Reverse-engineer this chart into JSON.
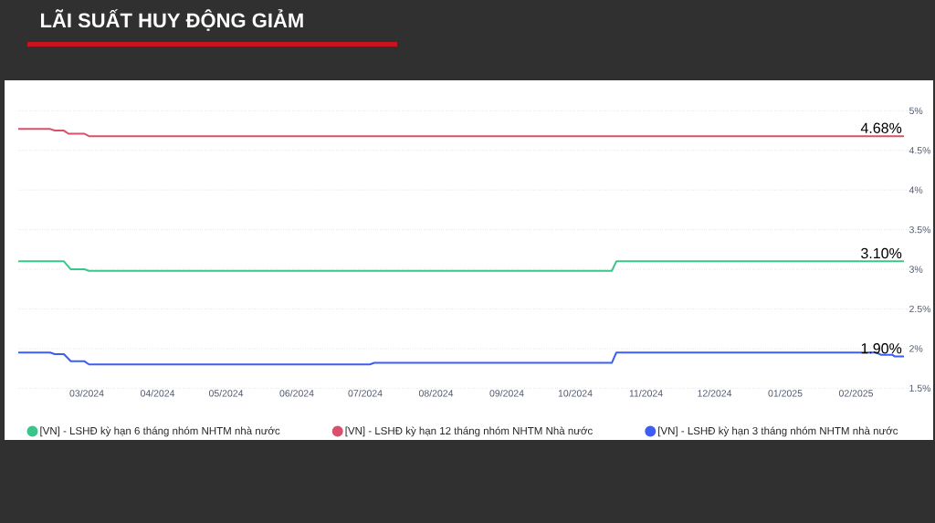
{
  "chart_data": {
    "type": "line",
    "title": "LÃI SUẤT HUY ĐỘNG GIẢM",
    "series": [
      {
        "name": "[VN] - LSHĐ kỳ hạn 6 tháng nhóm NHTM nhà nước",
        "color": "#3cc58a",
        "x": [
          "2024-01-31",
          "2024-02-20",
          "2024-02-23",
          "2024-02-29",
          "2024-03-02",
          "2024-10-17",
          "2024-10-19",
          "2025-02-22"
        ],
        "values": [
          3.1,
          3.1,
          3.0,
          3.0,
          2.98,
          2.98,
          3.1,
          3.1
        ]
      },
      {
        "name": "[VN] - LSHĐ kỳ hạn 12 tháng nhóm NHTM Nhà nước",
        "color": "#d9506a",
        "x": [
          "2024-01-31",
          "2024-02-14",
          "2024-02-16",
          "2024-02-20",
          "2024-02-22",
          "2024-02-29",
          "2024-03-02",
          "2025-02-22"
        ],
        "values": [
          4.77,
          4.77,
          4.75,
          4.75,
          4.71,
          4.71,
          4.68,
          4.68
        ]
      },
      {
        "name": "[VN] - LSHĐ kỳ hạn 3 tháng nhóm NHTM nhà nước",
        "color": "#3d5df5",
        "x": [
          "2024-01-31",
          "2024-02-14",
          "2024-02-16",
          "2024-02-20",
          "2024-02-23",
          "2024-02-29",
          "2024-03-02",
          "2024-07-03",
          "2024-07-05",
          "2024-10-17",
          "2024-10-19",
          "2025-02-10",
          "2025-02-12",
          "2025-02-17",
          "2025-02-18",
          "2025-02-22"
        ],
        "values": [
          1.95,
          1.95,
          1.93,
          1.93,
          1.84,
          1.84,
          1.8,
          1.8,
          1.82,
          1.82,
          1.95,
          1.95,
          1.92,
          1.92,
          1.9,
          1.9
        ]
      }
    ],
    "xlim": [
      "2024-01-31",
      "2025-02-24"
    ],
    "xticks": [
      {
        "value": "2024-03-01",
        "label": "03/2024"
      },
      {
        "value": "2024-04-01",
        "label": "04/2024"
      },
      {
        "value": "2024-05-01",
        "label": "05/2024"
      },
      {
        "value": "2024-06-01",
        "label": "06/2024"
      },
      {
        "value": "2024-07-01",
        "label": "07/2024"
      },
      {
        "value": "2024-08-01",
        "label": "08/2024"
      },
      {
        "value": "2024-09-01",
        "label": "09/2024"
      },
      {
        "value": "2024-10-01",
        "label": "10/2024"
      },
      {
        "value": "2024-11-01",
        "label": "11/2024"
      },
      {
        "value": "2024-12-01",
        "label": "12/2024"
      },
      {
        "value": "2025-01-01",
        "label": "01/2025"
      },
      {
        "value": "2025-02-01",
        "label": "02/2025"
      }
    ],
    "ylim": [
      1.5,
      5
    ],
    "yticks": [
      {
        "value": 1.5,
        "label": "1.5%"
      },
      {
        "value": 2,
        "label": "2%"
      },
      {
        "value": 2.5,
        "label": "2.5%"
      },
      {
        "value": 3,
        "label": "3%"
      },
      {
        "value": 3.5,
        "label": "3.5%"
      },
      {
        "value": 4,
        "label": "4%"
      },
      {
        "value": 4.5,
        "label": "4.5%"
      },
      {
        "value": 5,
        "label": "5%"
      }
    ],
    "grid": "y",
    "legend": "bottom",
    "annotations": [
      {
        "text": "4.68%",
        "x": "2025-02-22",
        "y": 4.68
      },
      {
        "text": "3.10%",
        "x": "2025-02-22",
        "y": 3.1
      },
      {
        "text": "1.90%",
        "x": "2025-02-22",
        "y": 1.9
      }
    ]
  }
}
